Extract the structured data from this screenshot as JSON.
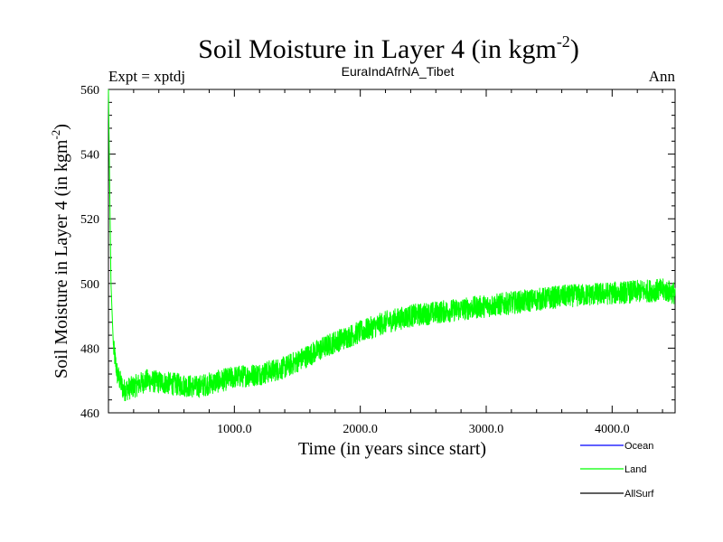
{
  "header": {
    "title_main": "Soil Moisture in Layer 4 (in kgm",
    "title_sup": "-2",
    "title_close": ")",
    "left_label": "Expt = xptdj",
    "center_label": "EuraIndAfrNA_Tibet",
    "right_label": "Ann"
  },
  "colors": {
    "ocean": "#0000ff",
    "land": "#00ff00",
    "allsurf": "#000000"
  },
  "chart_data": {
    "type": "line",
    "title": "Soil Moisture in Layer 4 (in kgm-2)",
    "xlabel": "Time (in years since start)",
    "ylabel": "Soil Moisture in Layer 4 (in kgm-2)",
    "ylabel_main": "Soil Moisture in Layer 4 (in kgm",
    "ylabel_sup": "-2",
    "ylabel_close": ")",
    "xlim": [
      0,
      4500
    ],
    "ylim": [
      460,
      560
    ],
    "x_ticks": [
      1000,
      2000,
      3000,
      4000
    ],
    "x_tick_labels": [
      "1000.0",
      "2000.0",
      "3000.0",
      "4000.0"
    ],
    "y_ticks": [
      460,
      480,
      500,
      520,
      540,
      560
    ],
    "y_tick_labels": [
      "460",
      "480",
      "500",
      "520",
      "540",
      "560"
    ],
    "legend": [
      "Ocean",
      "Land",
      "AllSurf"
    ],
    "legend_position": "bottom-right",
    "series": [
      {
        "name": "Land",
        "color": "#00ff00",
        "noise_amplitude": 3.5,
        "trend": [
          [
            0,
            560
          ],
          [
            10,
            530
          ],
          [
            20,
            500
          ],
          [
            40,
            480
          ],
          [
            70,
            472
          ],
          [
            120,
            467
          ],
          [
            200,
            468
          ],
          [
            300,
            470
          ],
          [
            500,
            469
          ],
          [
            700,
            468
          ],
          [
            800,
            469
          ],
          [
            1000,
            471
          ],
          [
            1200,
            472
          ],
          [
            1400,
            474
          ],
          [
            1600,
            478
          ],
          [
            1800,
            482
          ],
          [
            2000,
            485
          ],
          [
            2200,
            488
          ],
          [
            2400,
            490
          ],
          [
            2600,
            491
          ],
          [
            2800,
            492
          ],
          [
            3000,
            493
          ],
          [
            3200,
            494
          ],
          [
            3400,
            495
          ],
          [
            3600,
            496
          ],
          [
            3800,
            496.5
          ],
          [
            4000,
            497
          ],
          [
            4200,
            497.5
          ],
          [
            4400,
            498
          ],
          [
            4500,
            497
          ]
        ]
      }
    ]
  }
}
